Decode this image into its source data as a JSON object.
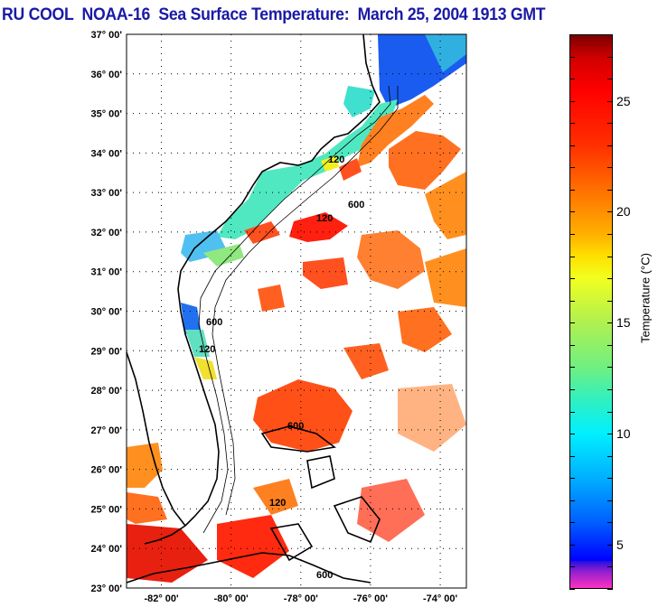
{
  "title": "RU COOL  NOAA-16  Sea Surface Temperature:  March 25, 2004 1913 GMT",
  "map": {
    "lat_range": [
      23,
      37
    ],
    "lon_range": [
      -83,
      -73.25
    ],
    "lat_labels": [
      {
        "value": 37,
        "text": "37° 00'"
      },
      {
        "value": 36,
        "text": "36° 00'"
      },
      {
        "value": 35,
        "text": "35° 00'"
      },
      {
        "value": 34,
        "text": "34° 00'"
      },
      {
        "value": 33,
        "text": "33° 00'"
      },
      {
        "value": 32,
        "text": "32° 00'"
      },
      {
        "value": 31,
        "text": "31° 00'"
      },
      {
        "value": 30,
        "text": "30° 00'"
      },
      {
        "value": 29,
        "text": "29° 00'"
      },
      {
        "value": 28,
        "text": "28° 00'"
      },
      {
        "value": 27,
        "text": "27° 00'"
      },
      {
        "value": 26,
        "text": "26° 00'"
      },
      {
        "value": 25,
        "text": "25° 00'"
      },
      {
        "value": 24,
        "text": "24° 00'"
      },
      {
        "value": 23,
        "text": "23° 00'"
      }
    ],
    "lon_labels": [
      {
        "value": -82,
        "text": "-82° 00'"
      },
      {
        "value": -80,
        "text": "-80° 00'"
      },
      {
        "value": -78,
        "text": "-78° 00'"
      },
      {
        "value": -76,
        "text": "-76° 00'"
      },
      {
        "value": -74,
        "text": "-74° 00'"
      }
    ],
    "contour_labels": [
      "120",
      "600"
    ]
  },
  "colorbar": {
    "label": "Temperature (°C)",
    "range": [
      3,
      28
    ],
    "ticks": [
      {
        "value": 25,
        "text": "25"
      },
      {
        "value": 20,
        "text": "20"
      },
      {
        "value": 15,
        "text": "15"
      },
      {
        "value": 10,
        "text": "10"
      },
      {
        "value": 5,
        "text": "5"
      }
    ]
  }
}
